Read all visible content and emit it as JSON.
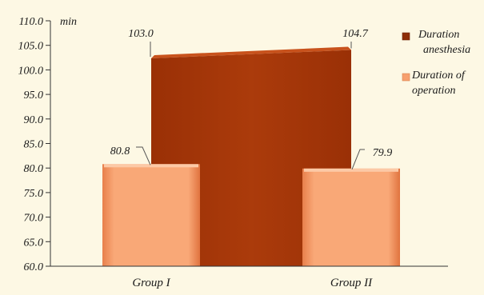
{
  "chart_data": {
    "type": "area",
    "unit_label": "min",
    "categories": [
      "Group I",
      "Group II"
    ],
    "series": [
      {
        "name_lines": [
          "Duration",
          "anesthesia"
        ],
        "values": [
          103.0,
          104.7
        ],
        "value_labels": [
          "103.0",
          "104.7"
        ],
        "color": "#a8380a",
        "kind": "area"
      },
      {
        "name_lines": [
          "Duration of",
          "operation"
        ],
        "values": [
          80.8,
          79.9
        ],
        "value_labels": [
          "80.8",
          "79.9"
        ],
        "color": "#f7a06e",
        "kind": "bar"
      }
    ],
    "ylim": [
      60,
      110
    ],
    "yticks": [
      "60.0",
      "65.0",
      "70.0",
      "75.0",
      "80.0",
      "85.0",
      "90.0",
      "95.0",
      "100.0",
      "105.0",
      "110.0"
    ],
    "grid": false,
    "legend_position": "right"
  }
}
